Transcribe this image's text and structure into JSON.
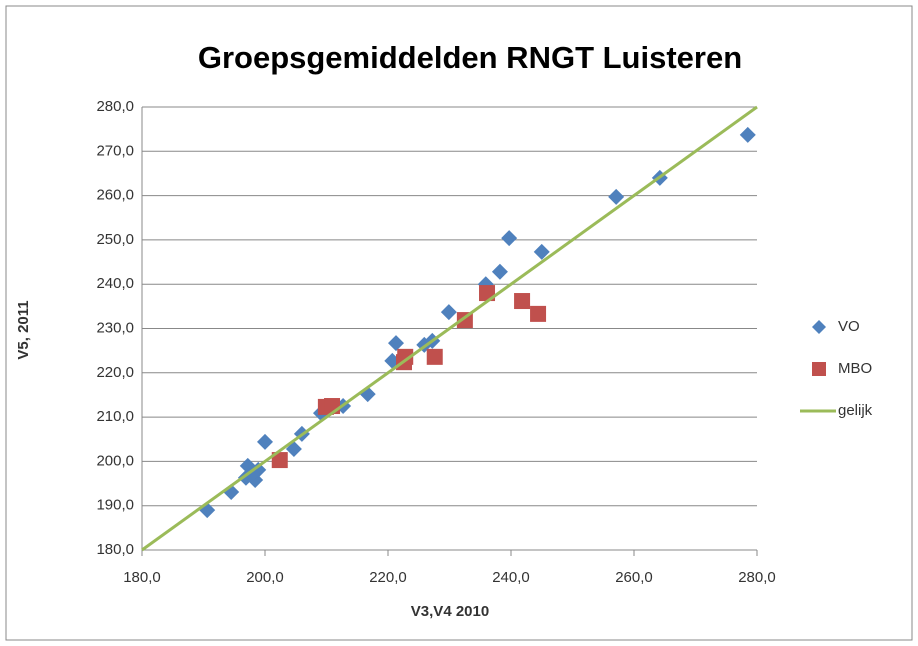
{
  "chart_data": {
    "type": "scatter",
    "title": "Groepsgemiddelden RNGT Luisteren",
    "xlabel": "V3,V4 2010",
    "ylabel": "V5, 2011",
    "xlim": [
      180,
      280
    ],
    "ylim": [
      180,
      280
    ],
    "xticks": [
      {
        "value": 180,
        "label": "180,0"
      },
      {
        "value": 200,
        "label": "200,0"
      },
      {
        "value": 220,
        "label": "220,0"
      },
      {
        "value": 240,
        "label": "240,0"
      },
      {
        "value": 260,
        "label": "260,0"
      },
      {
        "value": 280,
        "label": "280,0"
      }
    ],
    "yticks": [
      {
        "value": 180,
        "label": "180,0"
      },
      {
        "value": 190,
        "label": "190,0"
      },
      {
        "value": 200,
        "label": "200,0"
      },
      {
        "value": 210,
        "label": "210,0"
      },
      {
        "value": 220,
        "label": "220,0"
      },
      {
        "value": 230,
        "label": "230,0"
      },
      {
        "value": 240,
        "label": "240,0"
      },
      {
        "value": 250,
        "label": "250,0"
      },
      {
        "value": 260,
        "label": "260,0"
      },
      {
        "value": 270,
        "label": "270,0"
      },
      {
        "value": 280,
        "label": "280,0"
      }
    ],
    "grid": true,
    "legend": "right",
    "series": [
      {
        "name": "VO",
        "color": "#4f81bd",
        "marker": "diamond",
        "x": [
          190.6,
          194.5,
          196.9,
          197.2,
          198.4,
          198.9,
          197.9,
          200.0,
          204.7,
          206.0,
          209.1,
          210.1,
          212.7,
          216.7,
          220.7,
          221.3,
          225.9,
          227.2,
          229.9,
          235.9,
          238.2,
          239.7,
          245.0,
          257.1,
          264.2,
          278.5
        ],
        "values": [
          189.0,
          193.1,
          196.3,
          199.0,
          195.8,
          198.1,
          197.2,
          204.4,
          202.8,
          206.2,
          210.9,
          212.5,
          212.5,
          215.2,
          222.7,
          226.7,
          226.3,
          227.2,
          233.7,
          240.0,
          242.8,
          250.4,
          247.3,
          259.7,
          264.0,
          273.7
        ]
      },
      {
        "name": "MBO",
        "color": "#c0504d",
        "marker": "square",
        "x": [
          202.4,
          209.9,
          210.9,
          222.6,
          222.8,
          227.6,
          232.5,
          236.1,
          241.8,
          244.4
        ],
        "values": [
          200.3,
          212.3,
          212.5,
          222.4,
          223.6,
          223.6,
          231.9,
          238.0,
          236.2,
          233.3
        ]
      },
      {
        "name": "gelijk",
        "color": "#9bbb59",
        "marker": "line",
        "x": [
          180,
          280
        ],
        "values": [
          180,
          280
        ]
      }
    ]
  }
}
